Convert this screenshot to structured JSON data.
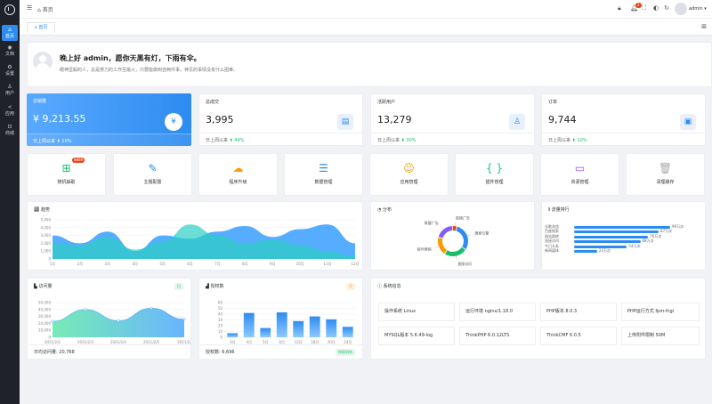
{
  "sidebar": {
    "items": [
      {
        "label": "首页",
        "icon": "home-icon"
      },
      {
        "label": "文档",
        "icon": "document-icon"
      },
      {
        "label": "设置",
        "icon": "gear-icon"
      },
      {
        "label": "用户",
        "icon": "user-icon"
      },
      {
        "label": "应用",
        "icon": "share-icon"
      },
      {
        "label": "商城",
        "icon": "cart-icon"
      }
    ]
  },
  "header": {
    "breadcrumb": "首页",
    "user": "admin",
    "bell_count": "2"
  },
  "tabs": [
    {
      "label": "首页"
    }
  ],
  "welcome": {
    "title": "晚上好 admin，愿你天黑有灯，下雨有伞。",
    "subtitle": "眼神坚毅的人，总是努力的工作至最火，只要能做到自两件事，神见的事情没有什么困难。"
  },
  "stats": [
    {
      "title": "访销量",
      "value": "¥ 9,213.55",
      "foot": "日上周以来",
      "change": "10%",
      "icon": "yen-icon"
    },
    {
      "title": "总成交",
      "value": "3,995",
      "foot": "日上周以来",
      "change": "44%",
      "icon": "document-icon"
    },
    {
      "title": "活跃用户",
      "value": "13,279",
      "foot": "日上周以来",
      "change": "30%",
      "icon": "user-search-icon"
    },
    {
      "title": "订单",
      "value": "9,744",
      "foot": "日上周以来",
      "change": "10%",
      "icon": "receipt-icon"
    }
  ],
  "quick": [
    {
      "label": "随机抽取",
      "icon": "grid-icon",
      "badge": "8888"
    },
    {
      "label": "主题配置",
      "icon": "brush-icon"
    },
    {
      "label": "程序升级",
      "icon": "upload-cloud-icon"
    },
    {
      "label": "数据管理",
      "icon": "database-icon"
    },
    {
      "label": "应用管理",
      "icon": "apps-icon"
    },
    {
      "label": "插件管理",
      "icon": "braces-icon"
    },
    {
      "label": "资源管理",
      "icon": "archive-icon"
    },
    {
      "label": "清理缓存",
      "icon": "trash-icon"
    }
  ],
  "trend": {
    "title": "趋势"
  },
  "distribution": {
    "title": "分布",
    "labels": [
      "搜索引擎",
      "直接访问",
      "邮件营销",
      "联盟广告",
      "视频广告"
    ]
  },
  "ranking": {
    "title": "流量排行",
    "items": [
      {
        "label": "谷歌浏览",
        "value": "99万次",
        "pct": 1.0
      },
      {
        "label": "百度搜索",
        "value": "87万次",
        "pct": 0.88
      },
      {
        "label": "网站跳转",
        "value": "76万次",
        "pct": 0.77
      },
      {
        "label": "直接访问",
        "value": "68万次",
        "pct": 0.69
      },
      {
        "label": "今日头条",
        "value": "54万次",
        "pct": 0.55
      },
      {
        "label": "新闻媒体",
        "value": "23万次",
        "pct": 0.24
      }
    ]
  },
  "visits": {
    "title": "访问量",
    "badge": "日",
    "foot": "日均访问量: 20,768"
  },
  "auth": {
    "title": "授权数",
    "badge": "月",
    "foot": "授权数: 6,696",
    "action": "授权机构"
  },
  "system": {
    "title": "系统信息",
    "items": [
      "操作系统 Linux",
      "运行环境 nginx/1.18.0",
      "PHP版本 8.0.3",
      "PHP运行方式 fpm-fcgi",
      "MYSQL版本 5.6.49-log",
      "ThinkPHP 6.0.12LTS",
      "ThinkCMF 6.0.5",
      "上传附件限制 50M"
    ]
  },
  "chart_data": [
    {
      "type": "area",
      "title": "趋势",
      "categories": [
        "1月",
        "2月",
        "3月",
        "4月",
        "5月",
        "6月",
        "7月",
        "8月",
        "9月",
        "10月",
        "11月",
        "12月"
      ],
      "ylim": [
        0,
        5000
      ],
      "yticks": [
        "5,000",
        "4,000",
        "3,000",
        "2,000",
        "1,000",
        "0"
      ],
      "series": [
        {
          "values": [
            3000,
            2000,
            3500,
            1000,
            3000,
            2600,
            3500,
            4200,
            2800,
            3800,
            4400,
            2000
          ]
        },
        {
          "values": [
            2000,
            1800,
            2800,
            1200,
            2200,
            4400,
            3000,
            2000,
            2500,
            1800,
            1000,
            300
          ]
        }
      ]
    },
    {
      "type": "pie",
      "title": "分布",
      "categories": [
        "搜索引擎",
        "直接访问",
        "邮件营销",
        "联盟广告",
        "视频广告"
      ],
      "values": [
        30,
        25,
        20,
        20,
        5
      ]
    },
    {
      "type": "area",
      "title": "访问量",
      "categories": [
        "2021/2/2",
        "2021/2/3",
        "2021/2/4",
        "2021/2/5",
        "2021/2/"
      ],
      "ylim": [
        0,
        50000
      ],
      "yticks": [
        "50,000",
        "40,000",
        "30,000",
        "20,000",
        "10,000",
        "0"
      ],
      "values": [
        23000,
        40000,
        24000,
        42000,
        26000
      ]
    },
    {
      "type": "bar",
      "title": "授权数",
      "categories": [
        "3月",
        "4月",
        "5月",
        "6月",
        "12月",
        "18月",
        "20月",
        "24月"
      ],
      "ylim": [
        0,
        60
      ],
      "yticks": [
        "60",
        "50",
        "40",
        "30",
        "20",
        "10",
        "0"
      ],
      "values": [
        7,
        42,
        16,
        43,
        28,
        36,
        31,
        18
      ]
    }
  ]
}
